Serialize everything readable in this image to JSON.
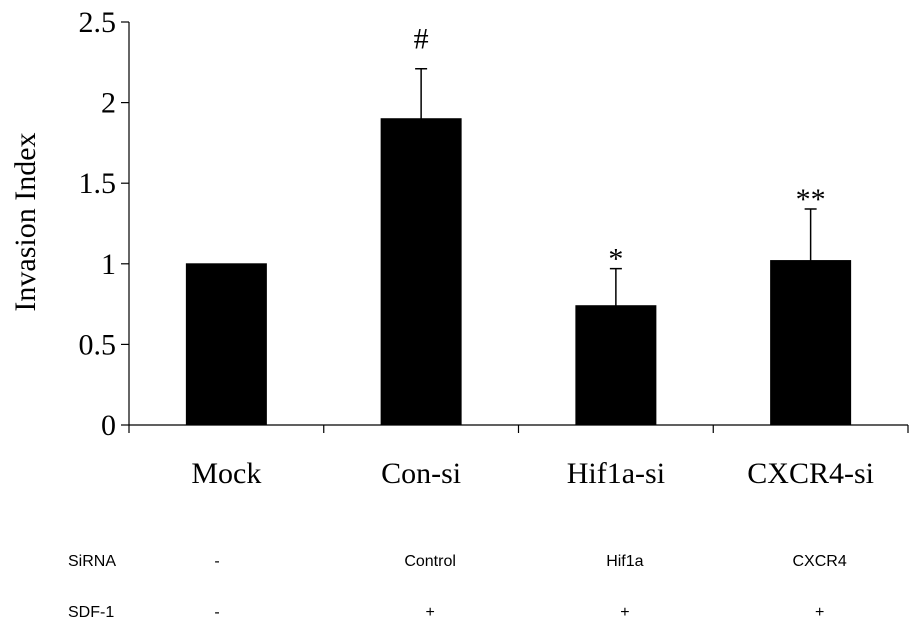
{
  "chart_data": {
    "type": "bar",
    "title": "",
    "xlabel": "",
    "ylabel": "Invasion Index",
    "ylim": [
      0,
      2.5
    ],
    "yticks": [
      "0",
      "0.5",
      "1",
      "1.5",
      "2",
      "2.5"
    ],
    "categories": [
      "Mock",
      "Con-si",
      "Hif1a-si",
      "CXCR4-si"
    ],
    "values": [
      1.0,
      1.9,
      0.74,
      1.02
    ],
    "errors": [
      0,
      0.31,
      0.23,
      0.32
    ],
    "annotations": [
      "",
      "#",
      "*",
      "**"
    ],
    "grid": false,
    "bar_color": "#000000"
  },
  "conditions_table": {
    "rows": [
      {
        "label": "SiRNA",
        "values": [
          "-",
          "Control",
          "Hif1a",
          "CXCR4"
        ]
      },
      {
        "label": "SDF-1",
        "values": [
          "-",
          "+",
          "+",
          "+"
        ]
      }
    ]
  }
}
